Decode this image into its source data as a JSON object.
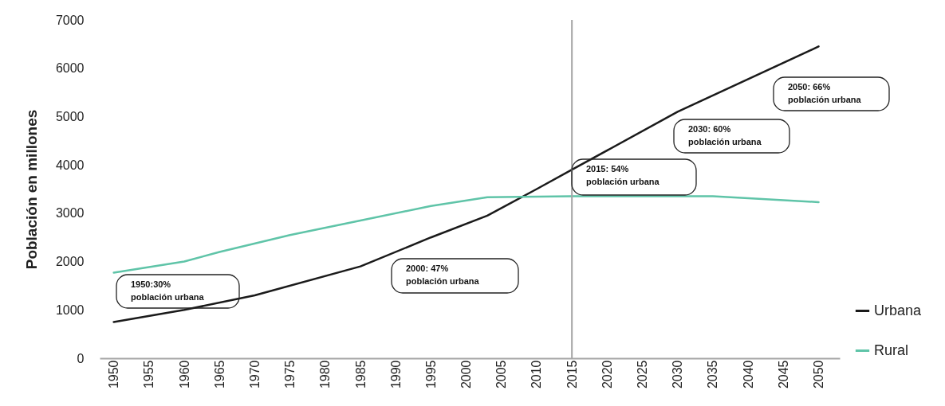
{
  "chart_data": {
    "type": "line",
    "ylabel": "Población en millones",
    "series": [
      {
        "name": "Urbana",
        "color": "#1a1a1a",
        "x": [
          1950,
          1960,
          1970,
          1985,
          1995,
          2003,
          2010,
          2015,
          2030,
          2050
        ],
        "values": [
          750,
          1000,
          1300,
          1900,
          2500,
          2950,
          3500,
          3900,
          5100,
          6450
        ]
      },
      {
        "name": "Rural",
        "color": "#5fc4a8",
        "x": [
          1950,
          1960,
          1965,
          1975,
          1985,
          1995,
          2003,
          2015,
          2035,
          2050
        ],
        "values": [
          1770,
          2000,
          2200,
          2550,
          2850,
          3150,
          3330,
          3350,
          3350,
          3230
        ]
      }
    ],
    "xlim": [
      1948,
      2053
    ],
    "xticks": [
      1950,
      1955,
      1960,
      1965,
      1970,
      1975,
      1980,
      1985,
      1990,
      1995,
      2000,
      2005,
      2010,
      2015,
      2020,
      2025,
      2030,
      2035,
      2040,
      2045,
      2050
    ],
    "ylim": [
      0,
      7000
    ],
    "yticks": [
      0,
      1000,
      2000,
      3000,
      4000,
      5000,
      6000,
      7000
    ],
    "ref_lines": [
      {
        "axis": "x",
        "value": 2015,
        "color": "#a6a6a6"
      }
    ],
    "annotations": [
      "1950:30%\npoblación urbana",
      "2000: 47%\npoblación urbana",
      "2015: 54%\npoblación urbana",
      "2030: 60%\npoblación urbana",
      "2050: 66%\npoblación urbana"
    ],
    "legend": "bottom right",
    "grid": false,
    "marker": "none",
    "line_style": "solid"
  }
}
